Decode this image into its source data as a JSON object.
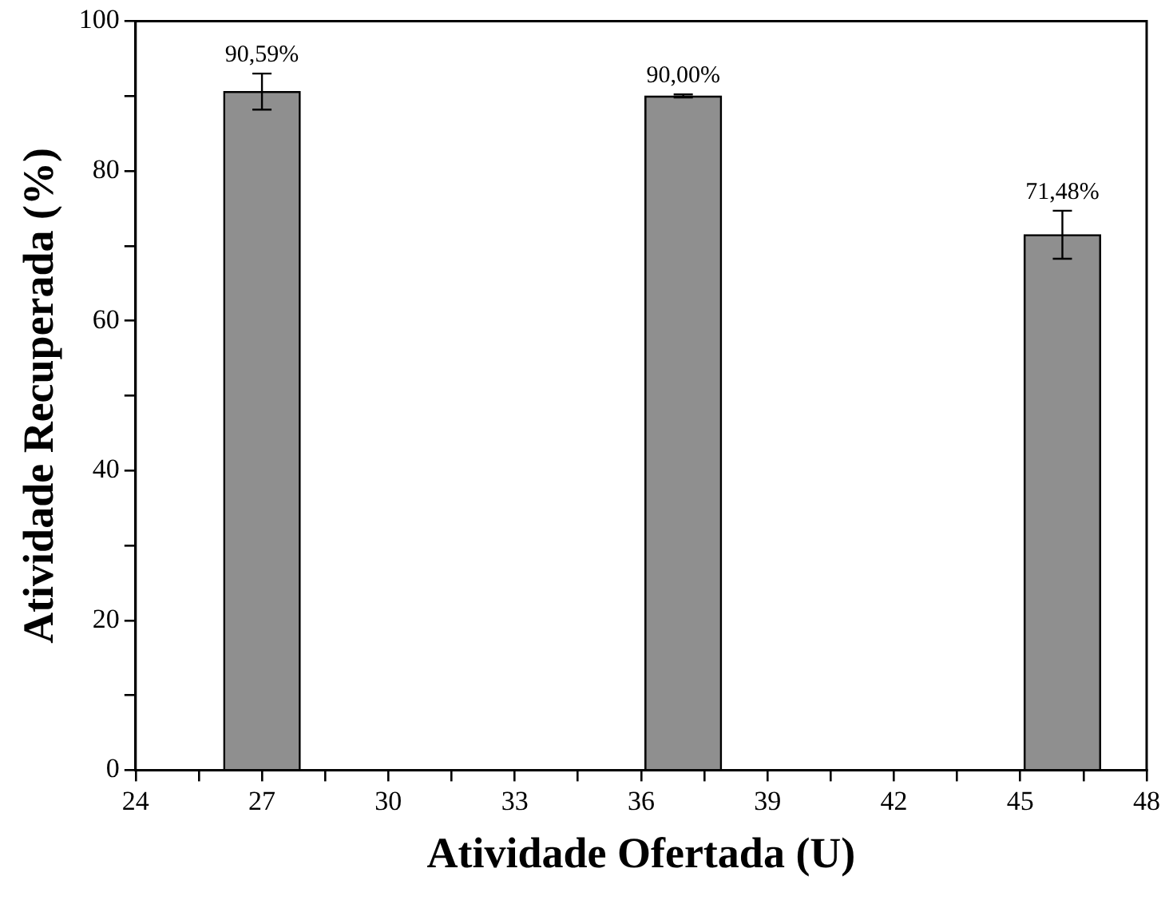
{
  "chart_data": {
    "type": "bar",
    "xlabel": "Atividade Ofertada (U)",
    "ylabel": "Atividade Recuperada (%)",
    "x": [
      27,
      37,
      46
    ],
    "values": [
      90.59,
      90.0,
      71.48
    ],
    "errors": [
      2.4,
      0.2,
      3.2
    ],
    "value_labels": [
      "90,59%",
      "90,00%",
      "71,48%"
    ],
    "color": "#8f8f8f",
    "xlim": [
      24,
      48
    ],
    "xticks": [
      24,
      {
        "value": 25.5,
        "label": null
      },
      27,
      {
        "value": 28.5,
        "label": null
      },
      30,
      {
        "value": 31.5,
        "label": null
      },
      33,
      {
        "value": 34.5,
        "label": null
      },
      36,
      {
        "value": 37.5,
        "label": null
      },
      39,
      {
        "value": 40.5,
        "label": null
      },
      42,
      {
        "value": 43.5,
        "label": null
      },
      45,
      {
        "value": 46.5,
        "label": null
      },
      48
    ],
    "ylim": [
      0,
      100
    ],
    "yticks": [
      0,
      {
        "value": 10,
        "label": null
      },
      20,
      {
        "value": 30,
        "label": null
      },
      40,
      {
        "value": 50,
        "label": null
      },
      60,
      {
        "value": 70,
        "label": null
      },
      80,
      {
        "value": 90,
        "label": null
      },
      100
    ]
  }
}
